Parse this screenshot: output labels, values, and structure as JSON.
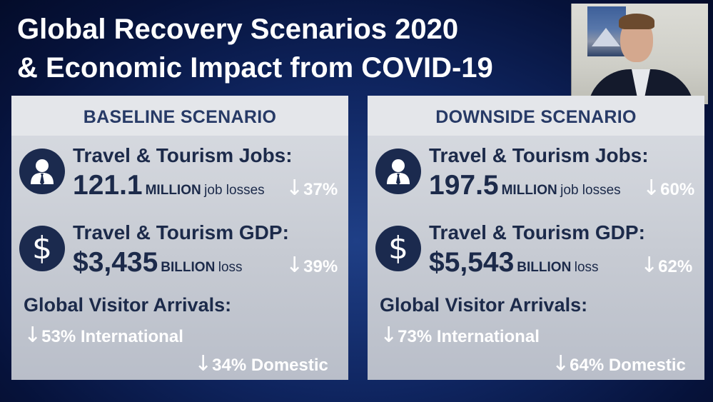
{
  "title": {
    "line1": "Global Recovery Scenarios 2020",
    "line2": "& Economic Impact from COVID-19"
  },
  "icons": {
    "jobs": "businessman-icon",
    "gdp": "dollar-icon",
    "arrow": "down-arrow-icon"
  },
  "colors": {
    "background": "#0f2560",
    "panel": "#c7cbd3",
    "header": "#e4e6ea",
    "text": "#1c2a4a"
  },
  "baseline": {
    "header": "BASELINE SCENARIO",
    "jobs_label": "Travel & Tourism Jobs:",
    "jobs_value": "121.1",
    "jobs_unit": "MILLION",
    "jobs_desc": "job losses",
    "jobs_pct": "37%",
    "gdp_label": "Travel & Tourism GDP:",
    "gdp_value": "$3,435",
    "gdp_unit": "BILLION",
    "gdp_desc": "loss",
    "gdp_pct": "39%",
    "arrivals_label": "Global Visitor Arrivals:",
    "international": "53% International",
    "domestic": "34% Domestic"
  },
  "downside": {
    "header": "DOWNSIDE SCENARIO",
    "jobs_label": "Travel & Tourism Jobs:",
    "jobs_value": "197.5",
    "jobs_unit": "MILLION",
    "jobs_desc": "job losses",
    "jobs_pct": "60%",
    "gdp_label": "Travel & Tourism GDP:",
    "gdp_value": "$5,543",
    "gdp_unit": "BILLION",
    "gdp_desc": "loss",
    "gdp_pct": "62%",
    "arrivals_label": "Global Visitor Arrivals:",
    "international": "73% International",
    "domestic": "64% Domestic"
  }
}
